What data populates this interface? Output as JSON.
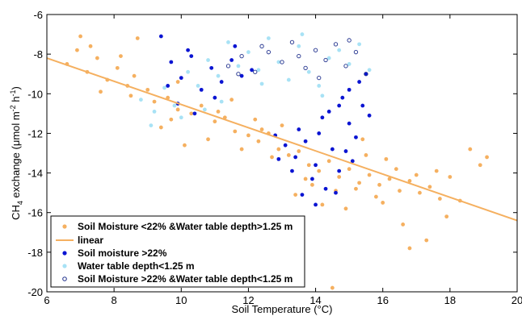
{
  "chart_data": {
    "type": "scatter",
    "xlabel": "Soil Temperature (°C)",
    "ylabel_parts": {
      "a": "CH",
      "a_sub": "4",
      "b": " exchange (μmol m",
      "b_sup": "-2",
      "c": " h",
      "c_sup": "-1",
      "d": ")"
    },
    "xlim": [
      6,
      20
    ],
    "ylim": [
      -20,
      -6
    ],
    "xticks": [
      6,
      8,
      10,
      12,
      14,
      16,
      18,
      20
    ],
    "yticks": [
      -20,
      -18,
      -16,
      -14,
      -12,
      -10,
      -8,
      -6
    ],
    "grid": false,
    "legend_position": "bottom-left",
    "colors": {
      "orange": "#F5B060",
      "blue": "#0A14D2",
      "light_blue": "#A8E2F5",
      "navy": "#1F2F8C"
    },
    "series": [
      {
        "name": "Soil Moisture <22% &Water table depth>1.25 m",
        "marker": "filled-dot",
        "color": "#F5B060",
        "points": [
          [
            6.6,
            -8.5
          ],
          [
            6.9,
            -7.8
          ],
          [
            7.2,
            -8.9
          ],
          [
            7.5,
            -8.2
          ],
          [
            7.8,
            -9.3
          ],
          [
            8.1,
            -8.7
          ],
          [
            8.4,
            -9.6
          ],
          [
            8.6,
            -9.1
          ],
          [
            9.0,
            -9.8
          ],
          [
            9.2,
            -10.4
          ],
          [
            9.6,
            -10.2
          ],
          [
            9.9,
            -10.8
          ],
          [
            10.3,
            -11.0
          ],
          [
            10.6,
            -10.6
          ],
          [
            11.0,
            -11.4
          ],
          [
            11.3,
            -11.2
          ],
          [
            11.6,
            -11.9
          ],
          [
            12.0,
            -12.1
          ],
          [
            12.3,
            -12.4
          ],
          [
            12.6,
            -12.0
          ],
          [
            12.9,
            -12.8
          ],
          [
            13.2,
            -13.1
          ],
          [
            13.5,
            -12.9
          ],
          [
            13.8,
            -13.6
          ],
          [
            14.1,
            -13.9
          ],
          [
            14.4,
            -13.4
          ],
          [
            14.7,
            -14.2
          ],
          [
            15.0,
            -13.8
          ],
          [
            15.3,
            -14.5
          ],
          [
            15.6,
            -14.1
          ],
          [
            15.9,
            -14.6
          ],
          [
            16.2,
            -14.3
          ],
          [
            16.5,
            -14.9
          ],
          [
            16.8,
            -14.4
          ],
          [
            17.1,
            -15.0
          ],
          [
            17.4,
            -14.7
          ],
          [
            17.7,
            -15.3
          ],
          [
            18.0,
            -14.2
          ],
          [
            18.6,
            -12.8
          ],
          [
            19.1,
            -13.2
          ],
          [
            8.7,
            -7.2
          ],
          [
            7.0,
            -7.1
          ],
          [
            9.4,
            -11.7
          ],
          [
            10.8,
            -12.3
          ],
          [
            11.5,
            -10.3
          ],
          [
            12.7,
            -13.2
          ],
          [
            13.4,
            -15.1
          ],
          [
            14.2,
            -15.6
          ],
          [
            14.9,
            -15.8
          ],
          [
            15.5,
            -13.1
          ],
          [
            16.1,
            -13.3
          ],
          [
            16.6,
            -16.6
          ],
          [
            16.8,
            -17.8
          ],
          [
            17.3,
            -17.4
          ],
          [
            17.9,
            -16.2
          ],
          [
            15.4,
            -12.3
          ],
          [
            14.5,
            -19.8
          ],
          [
            13.9,
            -14.6
          ],
          [
            12.2,
            -11.3
          ],
          [
            9.9,
            -9.4
          ],
          [
            8.2,
            -8.1
          ],
          [
            7.6,
            -9.9
          ],
          [
            10.1,
            -12.6
          ],
          [
            11.8,
            -12.8
          ],
          [
            13.0,
            -11.6
          ],
          [
            15.8,
            -15.2
          ],
          [
            16.4,
            -13.8
          ],
          [
            17.6,
            -13.9
          ],
          [
            18.3,
            -15.4
          ],
          [
            18.9,
            -13.6
          ],
          [
            14.6,
            -14.9
          ],
          [
            15.2,
            -14.8
          ],
          [
            13.7,
            -14.3
          ],
          [
            12.4,
            -11.8
          ],
          [
            11.1,
            -10.9
          ],
          [
            9.7,
            -11.3
          ],
          [
            8.5,
            -10.1
          ],
          [
            7.3,
            -7.6
          ],
          [
            17.0,
            -14.1
          ],
          [
            16.0,
            -15.5
          ]
        ]
      },
      {
        "name": "linear",
        "marker": "line",
        "color": "#F5B060",
        "x": [
          6,
          20
        ],
        "y": [
          -8.2,
          -16.4
        ]
      },
      {
        "name": "Soil moisture >22%",
        "marker": "filled-dot",
        "color": "#0A14D2",
        "points": [
          [
            9.4,
            -7.1
          ],
          [
            9.7,
            -8.4
          ],
          [
            10.0,
            -9.2
          ],
          [
            10.3,
            -8.1
          ],
          [
            10.6,
            -9.8
          ],
          [
            10.9,
            -8.7
          ],
          [
            11.2,
            -9.4
          ],
          [
            11.5,
            -8.3
          ],
          [
            11.8,
            -9.1
          ],
          [
            12.1,
            -8.8
          ],
          [
            12.8,
            -12.1
          ],
          [
            13.1,
            -12.6
          ],
          [
            13.4,
            -13.2
          ],
          [
            13.7,
            -12.4
          ],
          [
            14.0,
            -13.6
          ],
          [
            14.2,
            -11.2
          ],
          [
            14.5,
            -12.8
          ],
          [
            14.7,
            -13.9
          ],
          [
            15.0,
            -11.5
          ],
          [
            15.2,
            -12.2
          ],
          [
            15.4,
            -10.6
          ],
          [
            15.6,
            -11.1
          ],
          [
            15.3,
            -9.4
          ],
          [
            14.8,
            -10.2
          ],
          [
            14.4,
            -10.9
          ],
          [
            13.9,
            -14.3
          ],
          [
            14.3,
            -14.8
          ],
          [
            14.6,
            -15.0
          ],
          [
            13.6,
            -15.1
          ],
          [
            14.1,
            -12.0
          ],
          [
            15.0,
            -9.8
          ],
          [
            15.5,
            -9.0
          ],
          [
            9.9,
            -10.5
          ],
          [
            10.4,
            -11.0
          ],
          [
            11.0,
            -10.2
          ],
          [
            11.6,
            -7.6
          ],
          [
            10.2,
            -7.8
          ],
          [
            9.6,
            -9.6
          ],
          [
            13.3,
            -13.9
          ],
          [
            14.9,
            -12.9
          ],
          [
            15.1,
            -13.4
          ],
          [
            14.0,
            -15.6
          ],
          [
            13.5,
            -11.8
          ],
          [
            14.7,
            -10.6
          ],
          [
            12.9,
            -13.3
          ]
        ]
      },
      {
        "name": "Water table depth<1.25 m",
        "marker": "filled-dot",
        "color": "#A8E2F5",
        "points": [
          [
            8.8,
            -10.3
          ],
          [
            9.2,
            -10.9
          ],
          [
            9.5,
            -9.7
          ],
          [
            9.8,
            -10.6
          ],
          [
            10.2,
            -8.9
          ],
          [
            10.5,
            -9.6
          ],
          [
            10.8,
            -8.3
          ],
          [
            11.1,
            -9.1
          ],
          [
            11.4,
            -7.4
          ],
          [
            11.7,
            -8.6
          ],
          [
            12.0,
            -7.9
          ],
          [
            12.3,
            -8.8
          ],
          [
            12.6,
            -7.2
          ],
          [
            12.9,
            -8.4
          ],
          [
            13.2,
            -9.3
          ],
          [
            13.5,
            -7.6
          ],
          [
            13.8,
            -8.9
          ],
          [
            14.1,
            -9.6
          ],
          [
            14.4,
            -8.2
          ],
          [
            14.7,
            -7.8
          ],
          [
            15.0,
            -8.5
          ],
          [
            15.3,
            -7.5
          ],
          [
            15.6,
            -8.8
          ],
          [
            9.1,
            -11.6
          ],
          [
            10.0,
            -11.2
          ],
          [
            10.7,
            -10.8
          ],
          [
            13.6,
            -7.0
          ],
          [
            12.4,
            -9.5
          ],
          [
            11.2,
            -10.4
          ],
          [
            14.2,
            -10.1
          ]
        ]
      },
      {
        "name": "Soil Moisture >22% &Water table depth<1.25 m",
        "marker": "open-circle",
        "color": "#1F2F8C",
        "points": [
          [
            11.4,
            -8.6
          ],
          [
            11.8,
            -8.1
          ],
          [
            12.2,
            -8.9
          ],
          [
            12.6,
            -7.9
          ],
          [
            13.0,
            -8.4
          ],
          [
            13.3,
            -7.4
          ],
          [
            13.7,
            -8.7
          ],
          [
            14.0,
            -7.8
          ],
          [
            14.3,
            -8.3
          ],
          [
            14.6,
            -7.5
          ],
          [
            14.9,
            -8.6
          ],
          [
            15.2,
            -7.9
          ],
          [
            15.5,
            -9.0
          ],
          [
            12.4,
            -7.6
          ],
          [
            13.5,
            -8.1
          ],
          [
            14.1,
            -9.2
          ],
          [
            11.7,
            -9.0
          ],
          [
            15.0,
            -7.3
          ]
        ]
      }
    ]
  },
  "legend": {
    "items": [
      {
        "label": "Soil Moisture <22% &Water table depth>1.25 m",
        "marker": "filled-dot",
        "color": "#F5B060"
      },
      {
        "label": "linear",
        "marker": "line",
        "color": "#F5B060"
      },
      {
        "label": "Soil moisture >22%",
        "marker": "filled-dot",
        "color": "#0A14D2"
      },
      {
        "label": "Water table depth<1.25 m",
        "marker": "filled-dot",
        "color": "#A8E2F5"
      },
      {
        "label": "Soil Moisture >22% &Water table depth<1.25 m",
        "marker": "open-circle",
        "color": "#1F2F8C"
      }
    ]
  }
}
